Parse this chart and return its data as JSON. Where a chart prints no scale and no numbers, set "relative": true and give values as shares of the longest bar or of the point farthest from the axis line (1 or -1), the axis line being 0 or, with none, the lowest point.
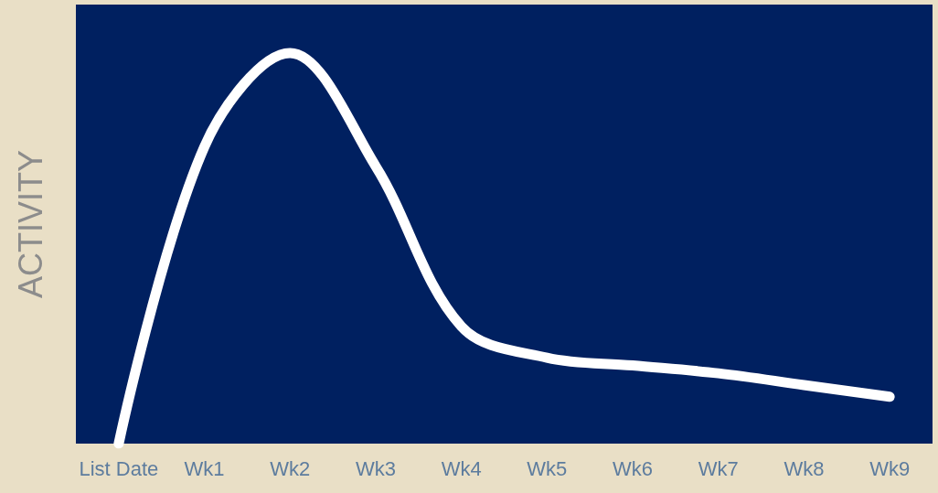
{
  "chart_data": {
    "type": "line",
    "ylabel": "ACTIVITY",
    "relative": true,
    "grid": false,
    "line_style": "solid",
    "categories": [
      "List Date",
      "Wk1",
      "Wk2",
      "Wk3",
      "Wk4",
      "Wk5",
      "Wk6",
      "Wk7",
      "Wk8",
      "Wk9"
    ],
    "series": [
      {
        "color": "#ffffff",
        "values": [
          0,
          0.76,
          1,
          0.71,
          0.3,
          0.22,
          0.2,
          0.18,
          0.15,
          0.12
        ]
      }
    ]
  }
}
